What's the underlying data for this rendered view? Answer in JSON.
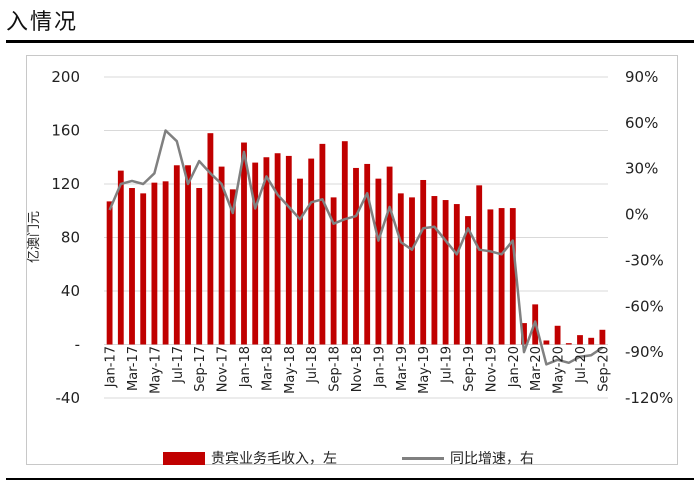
{
  "header": {
    "title": "入情况"
  },
  "chart_data": {
    "type": "bar+line",
    "ylabel_left": "亿澳门元",
    "y_left_ticks": [
      "200",
      "160",
      "120",
      "80",
      "40",
      "-",
      "-40"
    ],
    "y_left_tick_values": [
      200,
      160,
      120,
      80,
      40,
      0,
      -40
    ],
    "ylim_left": [
      -40,
      200
    ],
    "y_right_ticks": [
      "90%",
      "60%",
      "30%",
      "0%",
      "-30%",
      "-60%",
      "-90%",
      "-120%"
    ],
    "y_right_tick_values": [
      90,
      60,
      30,
      0,
      -30,
      -60,
      -90,
      -120
    ],
    "ylim_right": [
      -120,
      90
    ],
    "grid": true,
    "legend_position": "bottom",
    "x_tick_labels": [
      "Jan-17",
      "Mar-17",
      "May-17",
      "Jul-17",
      "Sep-17",
      "Nov-17",
      "Jan-18",
      "Mar-18",
      "May-18",
      "Jul-18",
      "Sep-18",
      "Nov-18",
      "Jan-19",
      "Mar-19",
      "May-19",
      "Jul-19",
      "Sep-19",
      "Nov-19",
      "Jan-20",
      "Mar-20",
      "May-20",
      "Jul-20",
      "Sep-20"
    ],
    "categories": [
      "Jan-17",
      "Feb-17",
      "Mar-17",
      "Apr-17",
      "May-17",
      "Jun-17",
      "Jul-17",
      "Aug-17",
      "Sep-17",
      "Oct-17",
      "Nov-17",
      "Dec-17",
      "Jan-18",
      "Feb-18",
      "Mar-18",
      "Apr-18",
      "May-18",
      "Jun-18",
      "Jul-18",
      "Aug-18",
      "Sep-18",
      "Oct-18",
      "Nov-18",
      "Dec-18",
      "Jan-19",
      "Feb-19",
      "Mar-19",
      "Apr-19",
      "May-19",
      "Jun-19",
      "Jul-19",
      "Aug-19",
      "Sep-19",
      "Oct-19",
      "Nov-19",
      "Dec-19",
      "Jan-20",
      "Feb-20",
      "Mar-20",
      "Apr-20",
      "May-20",
      "Jun-20",
      "Jul-20",
      "Aug-20",
      "Sep-20"
    ],
    "series": [
      {
        "name": "贵宾业务毛收入，左",
        "type": "bar",
        "axis": "left",
        "color": "#c00000",
        "values": [
          107,
          130,
          117,
          113,
          121,
          122,
          134,
          134,
          117,
          158,
          133,
          116,
          151,
          136,
          140,
          143,
          141,
          124,
          139,
          150,
          110,
          152,
          132,
          135,
          124,
          133,
          113,
          110,
          123,
          111,
          108,
          105,
          96,
          119,
          101,
          102,
          102,
          16,
          30,
          3,
          14,
          1,
          7,
          5,
          11
        ]
      },
      {
        "name": "同比增速，右",
        "type": "line",
        "axis": "right",
        "color": "#808080",
        "values": [
          3,
          20,
          22,
          20,
          27,
          55,
          48,
          20,
          35,
          27,
          20,
          1,
          41,
          4,
          25,
          13,
          5,
          -3,
          8,
          10,
          -6,
          -3,
          -1,
          14,
          -17,
          5,
          -18,
          -23,
          -9,
          -8,
          -17,
          -26,
          -9,
          -23,
          -24,
          -26,
          -17,
          -90,
          -70,
          -98,
          -95,
          -97,
          -93,
          -92,
          -87
        ]
      }
    ]
  }
}
